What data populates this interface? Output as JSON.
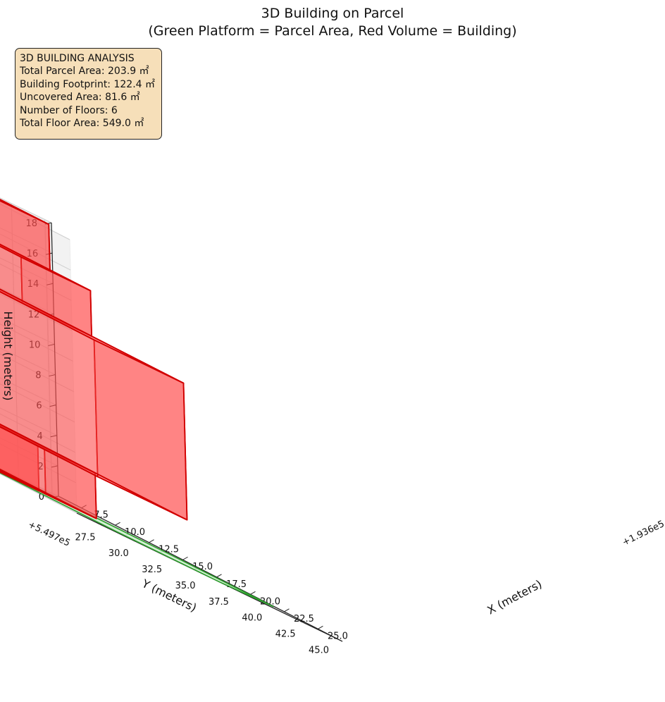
{
  "chart_data": {
    "type": "3d-polygons",
    "title": "3D Building on Parcel",
    "subtitle": "(Green Platform = Parcel Area, Red Volume = Building)",
    "xlabel": "X (meters)",
    "ylabel": "Y (meters)",
    "zlabel": "Height (meters)",
    "x_offset_label": "+1.936e5",
    "y_offset_label": "+5.497e5",
    "xlim": [
      5.8,
      26.8
    ],
    "ylim": [
      25.6,
      45.5
    ],
    "zlim": [
      0,
      18
    ],
    "x_ticks": [
      "7.5",
      "10.0",
      "12.5",
      "15.0",
      "17.5",
      "20.0",
      "22.5",
      "25.0"
    ],
    "x_tick_values": [
      7.5,
      10.0,
      12.5,
      15.0,
      17.5,
      20.0,
      22.5,
      25.0
    ],
    "y_ticks": [
      "27.5",
      "30.0",
      "32.5",
      "35.0",
      "37.5",
      "40.0",
      "42.5",
      "45.0"
    ],
    "y_tick_values": [
      27.5,
      30.0,
      32.5,
      35.0,
      37.5,
      40.0,
      42.5,
      45.0
    ],
    "z_ticks": [
      "0",
      "2",
      "4",
      "6",
      "8",
      "10",
      "12",
      "14",
      "16",
      "18"
    ],
    "z_tick_values": [
      0,
      2,
      4,
      6,
      8,
      10,
      12,
      14,
      16,
      18
    ],
    "grid": true,
    "parcel": {
      "color": "#2ca02c",
      "fill": "#d6f2d6",
      "z": 0,
      "outline": [
        [
          7.6,
          26.6
        ],
        [
          7.6,
          30.3
        ],
        [
          17.1,
          42.2
        ],
        [
          23.0,
          44.2
        ],
        [
          26.6,
          36.5
        ],
        [
          24.8,
          30.5
        ],
        [
          14.0,
          26.6
        ]
      ]
    },
    "building": {
      "color": "#d10000",
      "fill": "#ff5050",
      "boxes": [
        {
          "x": [
            8.3,
            16.4
          ],
          "y": [
            26.9,
            33.3
          ],
          "z": [
            0,
            3
          ]
        },
        {
          "x": [
            8.3,
            16.4
          ],
          "y": [
            33.8,
            37.6
          ],
          "z": [
            0,
            3
          ]
        },
        {
          "x": [
            7.8,
            22.9
          ],
          "y": [
            31.2,
            37.9
          ],
          "z": [
            3,
            12
          ]
        },
        {
          "x": [
            8.3,
            16.4
          ],
          "y": [
            32.4,
            37.6
          ],
          "z": [
            12,
            15
          ]
        },
        {
          "x": [
            8.3,
            13.4
          ],
          "y": [
            32.4,
            37.6
          ],
          "z": [
            15,
            18
          ]
        }
      ]
    },
    "info_box": {
      "lines": [
        "3D BUILDING ANALYSIS",
        "Total Parcel Area: 203.9 ㎡",
        "Building Footprint: 122.4 ㎡",
        "Uncovered Area: 81.6 ㎡",
        "Number of Floors: 6",
        "Total Floor Area: 549.0 ㎡"
      ],
      "placement": "top-left",
      "background": "#f6dfb9"
    }
  }
}
